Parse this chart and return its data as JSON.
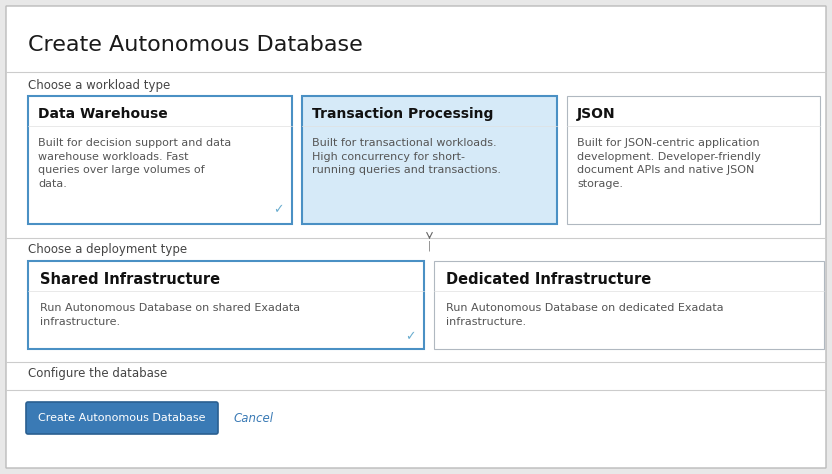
{
  "bg_color": "#e8e8e8",
  "page_bg": "#ffffff",
  "title": "Create Autonomous Database",
  "title_fontsize": 16,
  "title_color": "#1a1a1a",
  "section1_label": "Choose a workload type",
  "section2_label": "Choose a deployment type",
  "section3_label": "Configure the database",
  "workload_cards": [
    {
      "title": "Data Warehouse",
      "body": "Built for decision support and data\nwarehouse workloads. Fast\nqueries over large volumes of\ndata.",
      "bg": "#ffffff",
      "border": "#4a90c4",
      "border_lw": 1.5,
      "checkmark": true
    },
    {
      "title": "Transaction Processing",
      "body": "Built for transactional workloads.\nHigh concurrency for short-\nrunning queries and transactions.",
      "bg": "#d6eaf8",
      "border": "#4a90c4",
      "border_lw": 1.5,
      "checkmark": false
    },
    {
      "title": "JSON",
      "body": "Built for JSON-centric application\ndevelopment. Developer-friendly\ndocument APIs and native JSON\nstorage.",
      "bg": "#ffffff",
      "border": "#b0b8c0",
      "border_lw": 0.8,
      "checkmark": false
    }
  ],
  "deployment_cards": [
    {
      "title": "Shared Infrastructure",
      "body": "Run Autonomous Database on shared Exadata\ninfrastructure.",
      "bg": "#ffffff",
      "border": "#4a90c4",
      "border_lw": 1.5,
      "checkmark": true
    },
    {
      "title": "Dedicated Infrastructure",
      "body": "Run Autonomous Database on dedicated Exadata\ninfrastructure.",
      "bg": "#ffffff",
      "border": "#b0b8c0",
      "border_lw": 0.8,
      "checkmark": false
    }
  ],
  "button_label": "Create Autonomous Database",
  "button_bg": "#3a7ab5",
  "button_border": "#2a5f90",
  "button_text_color": "#ffffff",
  "cancel_label": "Cancel",
  "cancel_color": "#3a7ab5",
  "divider_color": "#cccccc",
  "section_label_color": "#444444",
  "card_title_color": "#111111",
  "card_body_color": "#555555",
  "checkmark_color": "#6aadcf",
  "card_title_fontsize": 10,
  "card_body_fontsize": 8,
  "section_label_fontsize": 8.5,
  "button_fontsize": 8,
  "cancel_fontsize": 8.5
}
